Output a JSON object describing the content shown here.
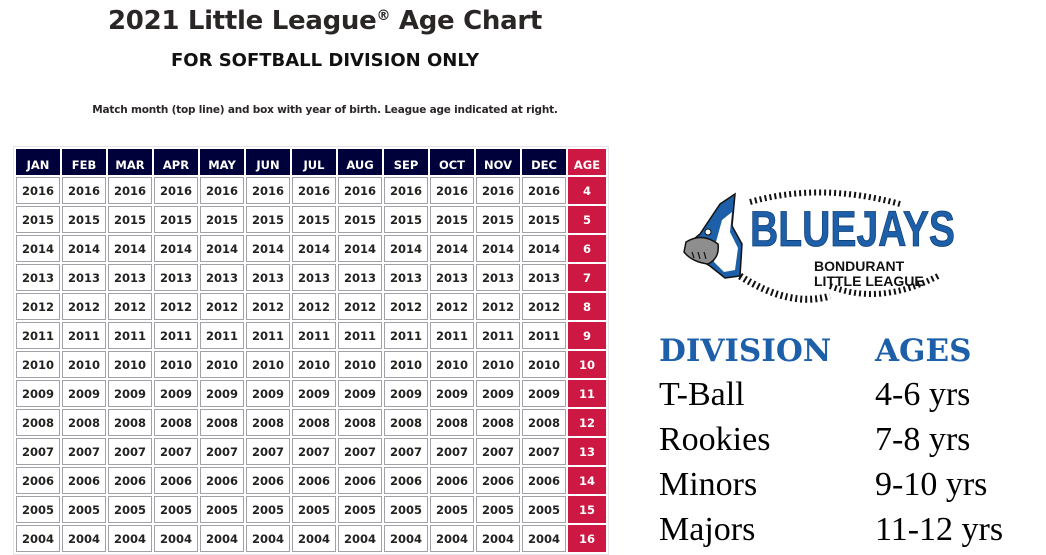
{
  "header": {
    "title": "2021 Little League",
    "title_mark": "®",
    "title_suffix": " Age Chart",
    "subtitle": "FOR SOFTBALL DIVISION ONLY",
    "instructions": "Match month (top line) and box with year of birth. League age indicated at right."
  },
  "age_chart": {
    "columns": [
      "JAN",
      "FEB",
      "MAR",
      "APR",
      "MAY",
      "JUN",
      "JUL",
      "AUG",
      "SEP",
      "OCT",
      "NOV",
      "DEC",
      "AGE"
    ],
    "rows": [
      {
        "year": "2016",
        "age": "4"
      },
      {
        "year": "2015",
        "age": "5"
      },
      {
        "year": "2014",
        "age": "6"
      },
      {
        "year": "2013",
        "age": "7"
      },
      {
        "year": "2012",
        "age": "8"
      },
      {
        "year": "2011",
        "age": "9"
      },
      {
        "year": "2010",
        "age": "10"
      },
      {
        "year": "2009",
        "age": "11"
      },
      {
        "year": "2008",
        "age": "12"
      },
      {
        "year": "2007",
        "age": "13"
      },
      {
        "year": "2006",
        "age": "14"
      },
      {
        "year": "2005",
        "age": "15"
      },
      {
        "year": "2004",
        "age": "16"
      }
    ],
    "colors": {
      "header_bg": "#00003a",
      "age_bg": "#cc1843",
      "cell_border": "#a3a0a8"
    }
  },
  "logo": {
    "name": "BLUEJAYS",
    "line1": "BONDURANT",
    "line2": "LITTLE LEAGUE",
    "icon": "bluejay-mascot-icon",
    "color": "#1d5fa8"
  },
  "divisions": {
    "header_division": "DIVISION",
    "header_ages": "AGES",
    "items": [
      {
        "name": "T-Ball",
        "ages": "4-6 yrs"
      },
      {
        "name": "Rookies",
        "ages": "7-8 yrs"
      },
      {
        "name": "Minors",
        "ages": "9-10 yrs"
      },
      {
        "name": "Majors",
        "ages": "11-12 yrs"
      }
    ]
  }
}
